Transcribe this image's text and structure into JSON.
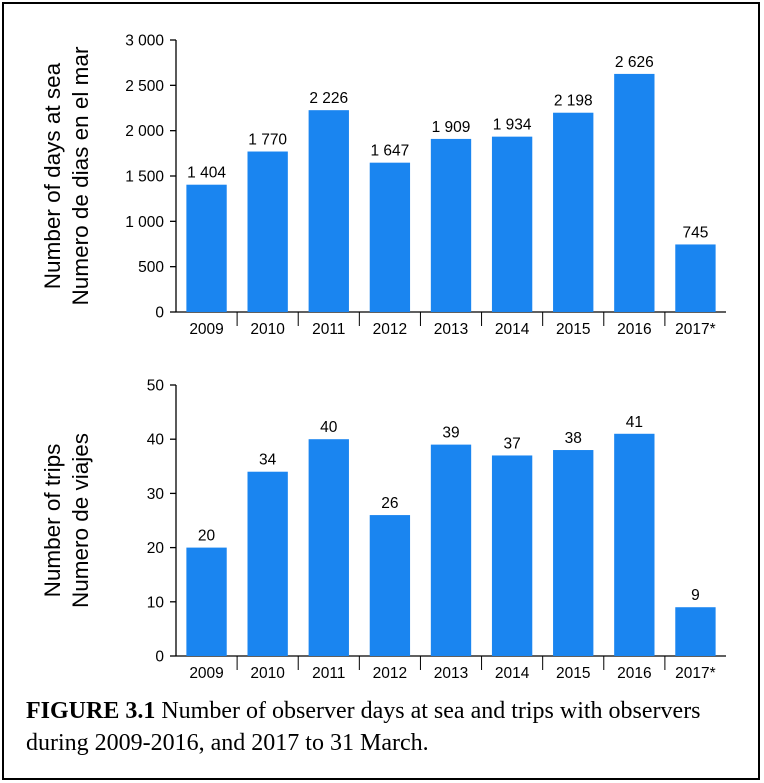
{
  "caption": {
    "label": "FIGURE 3.1",
    "text": " Number of observer days at sea and trips with observers during 2009-2016, and 2017 to 31 March."
  },
  "chart_data": [
    {
      "type": "bar",
      "ylabel_lines": [
        "Number of days at sea",
        "Numero de dias en el mar"
      ],
      "categories": [
        "2009",
        "2010",
        "2011",
        "2012",
        "2013",
        "2014",
        "2015",
        "2016",
        "2017*"
      ],
      "values": [
        1404,
        1770,
        2226,
        1647,
        1909,
        1934,
        2198,
        2626,
        745
      ],
      "value_labels": [
        "1 404",
        "1 770",
        "2 226",
        "1 647",
        "1 909",
        "1 934",
        "2 198",
        "2 626",
        "745"
      ],
      "yticks": [
        0,
        500,
        1000,
        1500,
        2000,
        2500,
        3000
      ],
      "ytick_labels": [
        "0",
        "500",
        "1 000",
        "1 500",
        "2 000",
        "2 500",
        "3 000"
      ],
      "ylim": [
        0,
        3000
      ],
      "bar_color": "#1a85f0",
      "grid": false
    },
    {
      "type": "bar",
      "ylabel_lines": [
        "Number of trips",
        "Numero de viajes"
      ],
      "categories": [
        "2009",
        "2010",
        "2011",
        "2012",
        "2013",
        "2014",
        "2015",
        "2016",
        "2017*"
      ],
      "values": [
        20,
        34,
        40,
        26,
        39,
        37,
        38,
        41,
        9
      ],
      "value_labels": [
        "20",
        "34",
        "40",
        "26",
        "39",
        "37",
        "38",
        "41",
        "9"
      ],
      "yticks": [
        0,
        10,
        20,
        30,
        40,
        50
      ],
      "ytick_labels": [
        "0",
        "10",
        "20",
        "30",
        "40",
        "50"
      ],
      "ylim": [
        0,
        50
      ],
      "bar_color": "#1a85f0",
      "grid": false
    }
  ]
}
